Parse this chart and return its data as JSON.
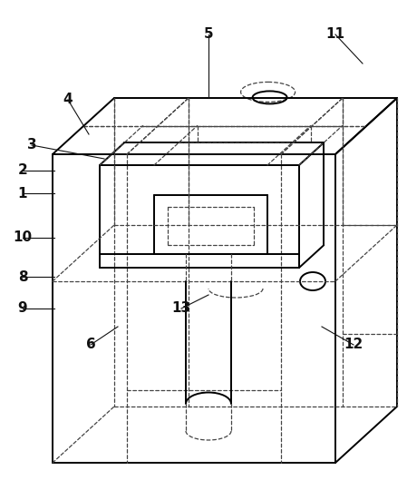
{
  "background_color": "#ffffff",
  "line_color": "#000000",
  "dashed_color": "#444444",
  "figsize": [
    4.49,
    5.29
  ],
  "dpi": 100,
  "lw_solid": 1.4,
  "lw_dash": 0.9,
  "dash_pattern": [
    3,
    2
  ]
}
